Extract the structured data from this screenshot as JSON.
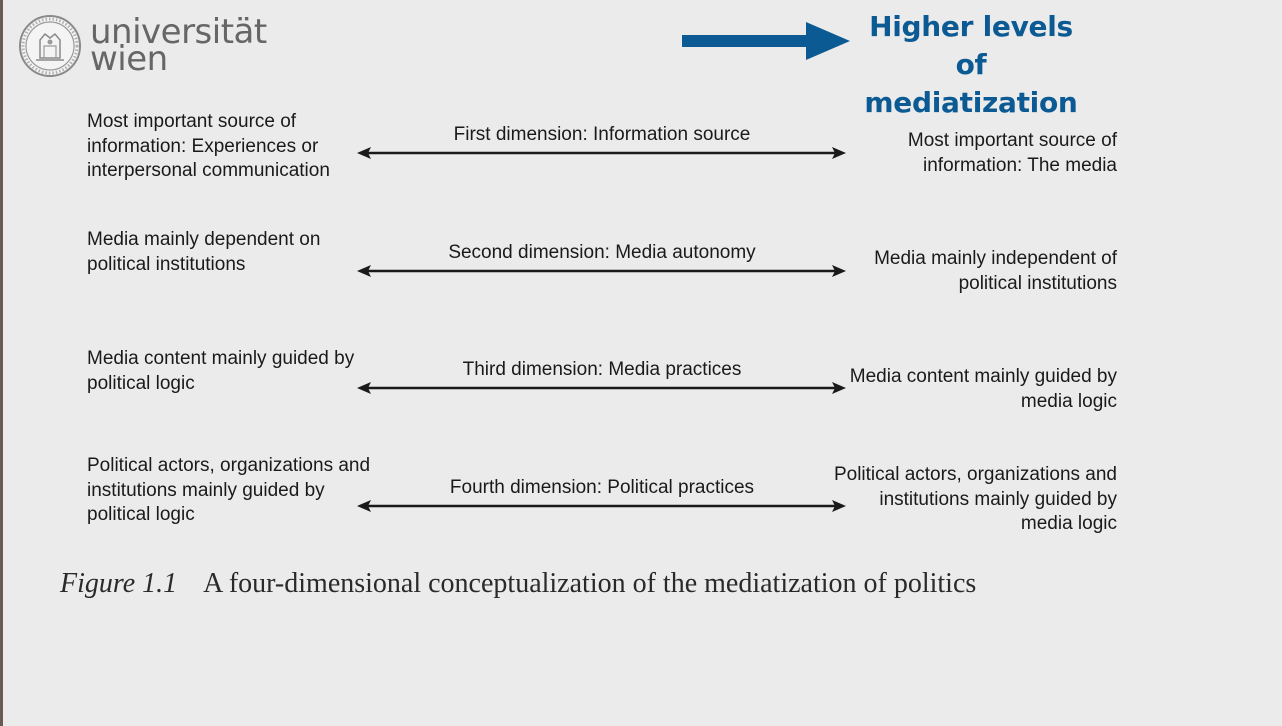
{
  "logo": {
    "line1": "universität",
    "line2": "wien"
  },
  "header": {
    "line1": "Higher levels of",
    "line2": "mediatization",
    "accent_color": "#0c5a94"
  },
  "rows": [
    {
      "left": "Most important source of information: Experiences or interpersonal communication",
      "dimension": "First dimension: Information source",
      "right": "Most important source of information: The media"
    },
    {
      "left": "Media mainly dependent on political institutions",
      "dimension": "Second dimension: Media autonomy",
      "right": "Media mainly independent of political institutions"
    },
    {
      "left": "Media content mainly guided by political logic",
      "dimension": "Third dimension: Media practices",
      "right": "Media content mainly guided by media logic"
    },
    {
      "left": "Political actors, organizations and institutions mainly guided by political logic",
      "dimension": "Fourth dimension: Political practices",
      "right": "Political actors, organizations and institutions mainly guided by media logic"
    }
  ],
  "caption": {
    "label": "Figure 1.1",
    "text": "A four-dimensional conceptualization of the mediatization of politics"
  }
}
